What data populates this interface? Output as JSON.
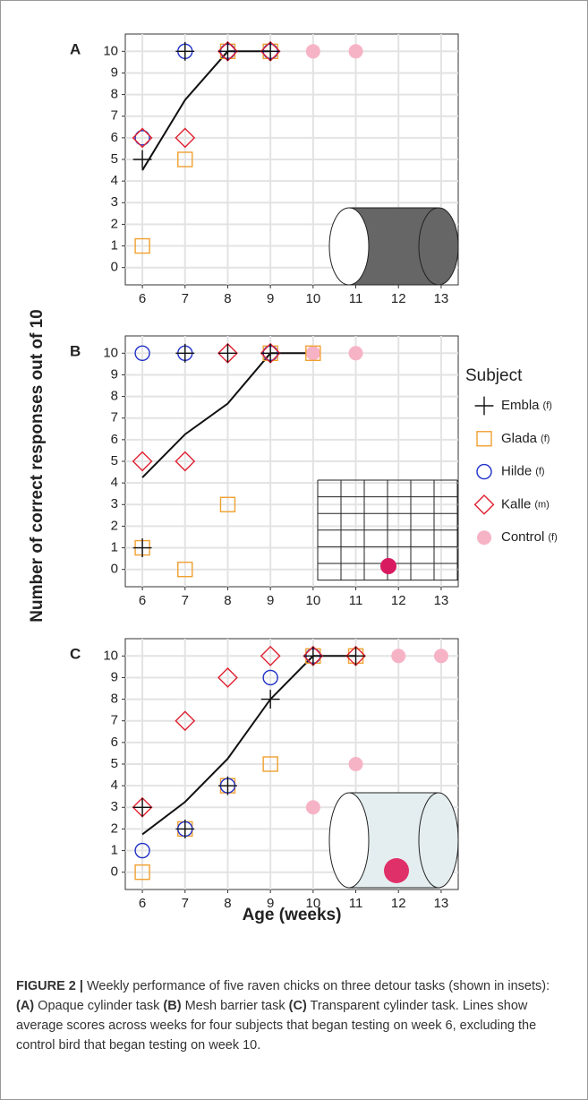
{
  "chart_data": [
    {
      "type": "scatter",
      "panel": "A",
      "x": [
        6,
        7,
        8,
        9,
        10,
        11,
        12,
        13
      ],
      "xlim": [
        5.6,
        13.4
      ],
      "ylim": [
        -0.8,
        10.8
      ],
      "xticks": [
        6,
        7,
        8,
        9,
        10,
        11,
        12,
        13
      ],
      "yticks": [
        0,
        1,
        2,
        3,
        4,
        5,
        6,
        7,
        8,
        9,
        10
      ],
      "grid": true,
      "series": [
        {
          "name": "Embla",
          "values": [
            5,
            10,
            10,
            10,
            null,
            null,
            null,
            null
          ]
        },
        {
          "name": "Glada",
          "values": [
            1,
            5,
            10,
            10,
            null,
            null,
            null,
            null
          ]
        },
        {
          "name": "Hilde",
          "values": [
            6,
            10,
            10,
            10,
            null,
            null,
            null,
            null
          ]
        },
        {
          "name": "Kalle",
          "values": [
            6,
            6,
            10,
            10,
            null,
            null,
            null,
            null
          ]
        },
        {
          "name": "Control",
          "values": [
            null,
            null,
            null,
            null,
            10,
            10,
            null,
            null
          ]
        }
      ],
      "average": [
        4.5,
        7.75,
        10,
        10,
        null,
        null,
        null,
        null
      ]
    },
    {
      "type": "scatter",
      "panel": "B",
      "x": [
        6,
        7,
        8,
        9,
        10,
        11,
        12,
        13
      ],
      "xlim": [
        5.6,
        13.4
      ],
      "ylim": [
        -0.8,
        10.8
      ],
      "xticks": [
        6,
        7,
        8,
        9,
        10,
        11,
        12,
        13
      ],
      "yticks": [
        0,
        1,
        2,
        3,
        4,
        5,
        6,
        7,
        8,
        9,
        10
      ],
      "grid": true,
      "series": [
        {
          "name": "Embla",
          "values": [
            1,
            10,
            10,
            10,
            null,
            null,
            null,
            null
          ]
        },
        {
          "name": "Glada",
          "values": [
            1,
            0,
            3,
            10,
            10,
            null,
            null,
            null
          ]
        },
        {
          "name": "Hilde",
          "values": [
            10,
            10,
            null,
            10,
            null,
            null,
            null,
            null
          ]
        },
        {
          "name": "Kalle",
          "values": [
            5,
            5,
            10,
            10,
            null,
            null,
            null,
            null
          ]
        },
        {
          "name": "Control",
          "values": [
            null,
            null,
            null,
            null,
            10,
            10,
            null,
            null
          ]
        }
      ],
      "average": [
        4.25,
        6.25,
        7.67,
        10,
        10,
        null,
        null,
        null
      ]
    },
    {
      "type": "scatter",
      "panel": "C",
      "x": [
        6,
        7,
        8,
        9,
        10,
        11,
        12,
        13
      ],
      "xlim": [
        5.6,
        13.4
      ],
      "ylim": [
        -0.8,
        10.8
      ],
      "xticks": [
        6,
        7,
        8,
        9,
        10,
        11,
        12,
        13
      ],
      "yticks": [
        0,
        1,
        2,
        3,
        4,
        5,
        6,
        7,
        8,
        9,
        10
      ],
      "grid": true,
      "series": [
        {
          "name": "Embla",
          "values": [
            3,
            2,
            4,
            8,
            10,
            10,
            null,
            null
          ]
        },
        {
          "name": "Glada",
          "values": [
            0,
            2,
            4,
            5,
            10,
            10,
            null,
            null
          ]
        },
        {
          "name": "Hilde",
          "values": [
            1,
            2,
            4,
            9,
            10,
            null,
            null,
            null
          ]
        },
        {
          "name": "Kalle",
          "values": [
            3,
            7,
            9,
            10,
            10,
            10,
            null,
            null
          ]
        },
        {
          "name": "Control",
          "values": [
            null,
            null,
            null,
            null,
            3,
            5,
            10,
            10
          ]
        }
      ],
      "average": [
        1.75,
        3.25,
        5.25,
        8,
        10,
        10,
        null,
        null
      ]
    }
  ],
  "x_label": "Age (weeks)",
  "y_label": "Number of correct responses out of 10",
  "legend": {
    "title": "Subject",
    "entries": [
      {
        "name": "Embla",
        "sex": "(f)",
        "marker": "plus",
        "color": "#111111"
      },
      {
        "name": "Glada",
        "sex": "(f)",
        "marker": "square",
        "color": "#f0a030"
      },
      {
        "name": "Hilde",
        "sex": "(f)",
        "marker": "circle",
        "color": "#2030c8"
      },
      {
        "name": "Kalle",
        "sex": "(m)",
        "marker": "diamond",
        "color": "#e02030"
      },
      {
        "name": "Control",
        "sex": "(f)",
        "marker": "dot",
        "color": "#f7b3c6"
      }
    ]
  },
  "caption": {
    "label": "FIGURE 2 |",
    "parts": [
      {
        "bold": false,
        "text": " Weekly performance of five raven chicks on three detour tasks (shown in insets): "
      },
      {
        "bold": true,
        "text": "(A)"
      },
      {
        "bold": false,
        "text": " Opaque cylinder task "
      },
      {
        "bold": true,
        "text": "(B)"
      },
      {
        "bold": false,
        "text": " Mesh barrier task "
      },
      {
        "bold": true,
        "text": "(C)"
      },
      {
        "bold": false,
        "text": " Transparent cylinder task. Lines show average scores across weeks for four subjects that began testing on week 6, excluding the control bird that began testing on week 10."
      }
    ]
  }
}
